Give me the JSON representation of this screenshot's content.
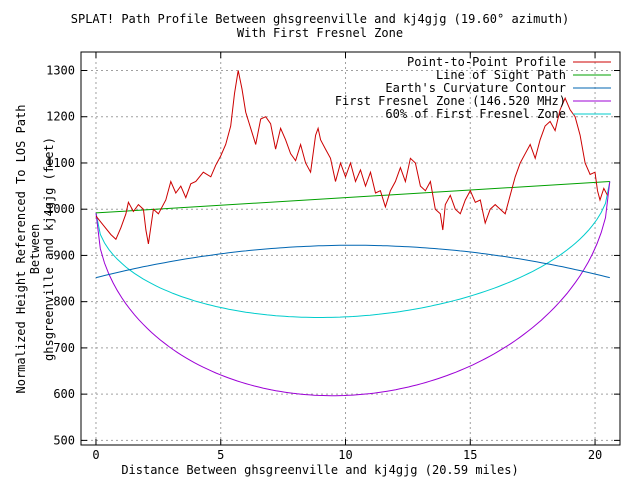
{
  "chart_data": {
    "type": "line",
    "title": "SPLAT! Path Profile Between ghsgreenville and kj4gjg (19.60° azimuth)",
    "subtitle": "With First Fresnel Zone",
    "xlabel": "Distance Between ghsgreenville and kj4gjg (20.59 miles)",
    "ylabel_line1": "Normalized Height Referenced To LOS Path Between",
    "ylabel_line2": "ghsgreenville and kj4gjg (feet)",
    "xlim": [
      -0.6,
      21.0
    ],
    "ylim": [
      490,
      1340
    ],
    "xticks": [
      0,
      5,
      10,
      15,
      20
    ],
    "yticks": [
      500,
      600,
      700,
      800,
      900,
      1000,
      1100,
      1200,
      1300
    ],
    "grid": true,
    "legend_position": "top-right",
    "path_length_miles": 20.59,
    "series": [
      {
        "name": "Point-to-Point Profile",
        "color": "#cc0000",
        "points": [
          [
            0.0,
            985
          ],
          [
            0.3,
            965
          ],
          [
            0.6,
            945
          ],
          [
            0.8,
            935
          ],
          [
            1.0,
            960
          ],
          [
            1.2,
            990
          ],
          [
            1.3,
            1015
          ],
          [
            1.5,
            995
          ],
          [
            1.7,
            1010
          ],
          [
            1.9,
            1000
          ],
          [
            2.0,
            955
          ],
          [
            2.1,
            925
          ],
          [
            2.3,
            1000
          ],
          [
            2.5,
            990
          ],
          [
            2.8,
            1020
          ],
          [
            3.0,
            1060
          ],
          [
            3.2,
            1035
          ],
          [
            3.4,
            1050
          ],
          [
            3.6,
            1025
          ],
          [
            3.8,
            1055
          ],
          [
            4.0,
            1060
          ],
          [
            4.3,
            1080
          ],
          [
            4.6,
            1070
          ],
          [
            4.8,
            1095
          ],
          [
            5.0,
            1115
          ],
          [
            5.2,
            1140
          ],
          [
            5.4,
            1180
          ],
          [
            5.55,
            1250
          ],
          [
            5.7,
            1300
          ],
          [
            5.85,
            1260
          ],
          [
            6.0,
            1210
          ],
          [
            6.2,
            1175
          ],
          [
            6.4,
            1140
          ],
          [
            6.6,
            1195
          ],
          [
            6.8,
            1200
          ],
          [
            7.0,
            1185
          ],
          [
            7.2,
            1130
          ],
          [
            7.4,
            1175
          ],
          [
            7.6,
            1150
          ],
          [
            7.8,
            1120
          ],
          [
            8.0,
            1105
          ],
          [
            8.2,
            1140
          ],
          [
            8.4,
            1100
          ],
          [
            8.6,
            1080
          ],
          [
            8.8,
            1160
          ],
          [
            8.9,
            1175
          ],
          [
            9.0,
            1150
          ],
          [
            9.2,
            1130
          ],
          [
            9.4,
            1110
          ],
          [
            9.6,
            1060
          ],
          [
            9.8,
            1100
          ],
          [
            10.0,
            1070
          ],
          [
            10.2,
            1100
          ],
          [
            10.4,
            1060
          ],
          [
            10.6,
            1085
          ],
          [
            10.8,
            1050
          ],
          [
            11.0,
            1080
          ],
          [
            11.2,
            1035
          ],
          [
            11.4,
            1040
          ],
          [
            11.6,
            1005
          ],
          [
            11.8,
            1040
          ],
          [
            12.0,
            1060
          ],
          [
            12.2,
            1090
          ],
          [
            12.4,
            1060
          ],
          [
            12.6,
            1110
          ],
          [
            12.8,
            1100
          ],
          [
            13.0,
            1050
          ],
          [
            13.2,
            1040
          ],
          [
            13.4,
            1060
          ],
          [
            13.6,
            1000
          ],
          [
            13.8,
            990
          ],
          [
            13.9,
            955
          ],
          [
            14.0,
            1010
          ],
          [
            14.2,
            1030
          ],
          [
            14.4,
            1000
          ],
          [
            14.6,
            990
          ],
          [
            14.8,
            1020
          ],
          [
            15.0,
            1040
          ],
          [
            15.2,
            1015
          ],
          [
            15.4,
            1020
          ],
          [
            15.6,
            970
          ],
          [
            15.8,
            1000
          ],
          [
            16.0,
            1010
          ],
          [
            16.2,
            1000
          ],
          [
            16.4,
            990
          ],
          [
            16.6,
            1030
          ],
          [
            16.8,
            1070
          ],
          [
            17.0,
            1100
          ],
          [
            17.2,
            1120
          ],
          [
            17.4,
            1140
          ],
          [
            17.6,
            1110
          ],
          [
            17.8,
            1150
          ],
          [
            18.0,
            1180
          ],
          [
            18.2,
            1190
          ],
          [
            18.4,
            1170
          ],
          [
            18.6,
            1215
          ],
          [
            18.8,
            1240
          ],
          [
            19.0,
            1215
          ],
          [
            19.2,
            1200
          ],
          [
            19.4,
            1160
          ],
          [
            19.6,
            1100
          ],
          [
            19.8,
            1075
          ],
          [
            20.0,
            1080
          ],
          [
            20.1,
            1040
          ],
          [
            20.2,
            1020
          ],
          [
            20.35,
            1045
          ],
          [
            20.5,
            1030
          ]
        ]
      },
      {
        "name": "Line of Sight Path",
        "color": "#00a000",
        "points": [
          [
            0.0,
            992
          ],
          [
            20.59,
            1060
          ]
        ]
      },
      {
        "name": "Earth's Curvature Contour",
        "color": "#0066b2",
        "x_range": [
          0.0,
          20.59
        ],
        "endpoints": [
          852,
          852
        ],
        "peak": 922
      },
      {
        "name": "First Fresnel Zone (146.520 MHz)",
        "color": "#9c00d6",
        "x_range": [
          0.0,
          20.59
        ],
        "endpoints": [
          992,
          1060
        ],
        "center_height": 598
      },
      {
        "name": "60% of First Fresnel Zone",
        "color": "#00cccc",
        "x_range": [
          0.0,
          20.59
        ],
        "endpoints": [
          992,
          1060
        ],
        "center_height": 768
      }
    ]
  }
}
